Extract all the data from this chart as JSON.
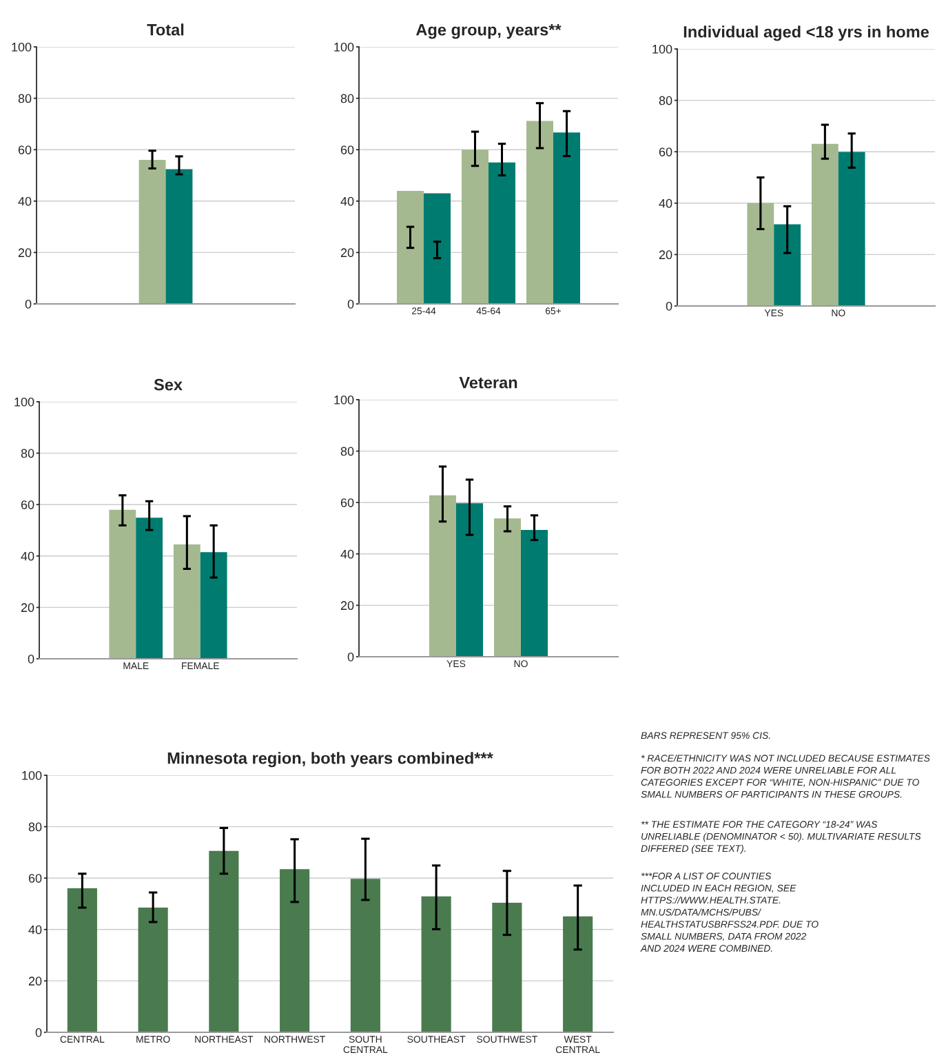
{
  "chart_data": [
    {
      "type": "bar",
      "title": "Total",
      "categories": [
        null
      ],
      "ylim": [
        0,
        100
      ],
      "yticks": [
        0,
        20,
        40,
        60,
        80,
        100
      ],
      "grid": "y",
      "series": [
        {
          "color": "#a5b990",
          "values": [
            56
          ],
          "errors": [
            [
              52.7,
              59.6
            ]
          ]
        },
        {
          "color": "#007b70",
          "values": [
            52.4
          ],
          "errors": [
            [
              50.4,
              57.4
            ]
          ]
        }
      ]
    },
    {
      "type": "bar",
      "title": "Age group, years**",
      "categories": [
        "25-44",
        "45-64",
        "65+"
      ],
      "ylim": [
        0,
        100
      ],
      "yticks": [
        0,
        20,
        40,
        60,
        80,
        100
      ],
      "grid": "y",
      "series": [
        {
          "color": "#a5b990",
          "values": [
            44,
            60,
            71.2
          ],
          "errors": [
            [
              21.8,
              30
            ],
            [
              53.7,
              67
            ],
            [
              60.6,
              78.1
            ]
          ]
        },
        {
          "color": "#007b70",
          "values": [
            43,
            55,
            66.7
          ],
          "errors": [
            [
              17.8,
              24.2
            ],
            [
              50,
              62.3
            ],
            [
              57.5,
              75
            ]
          ]
        }
      ]
    },
    {
      "type": "bar",
      "title": "Individual aged <18 yrs in home",
      "categories": [
        "YES",
        "NO"
      ],
      "ylim": [
        0,
        100
      ],
      "yticks": [
        0,
        20,
        40,
        60,
        80,
        100
      ],
      "grid": "y",
      "series": [
        {
          "color": "#a5b990",
          "values": [
            40,
            63.1
          ],
          "errors": [
            [
              29.9,
              50
            ],
            [
              57.3,
              70.5
            ]
          ]
        },
        {
          "color": "#007b70",
          "values": [
            31.8,
            59.9
          ],
          "errors": [
            [
              20.6,
              38.8
            ],
            [
              53.8,
              67.1
            ]
          ]
        }
      ]
    },
    {
      "type": "bar",
      "title": "Sex",
      "categories": [
        "MALE",
        "FEMALE"
      ],
      "ylim": [
        0,
        100
      ],
      "yticks": [
        0,
        20,
        40,
        60,
        80,
        100
      ],
      "grid": "y",
      "series": [
        {
          "color": "#a5b990",
          "values": [
            58,
            44.5
          ],
          "errors": [
            [
              51.9,
              63.6
            ],
            [
              35,
              55.5
            ]
          ]
        },
        {
          "color": "#007b70",
          "values": [
            54.9,
            41.5
          ],
          "errors": [
            [
              50.1,
              61.3
            ],
            [
              31.6,
              51.9
            ]
          ]
        }
      ]
    },
    {
      "type": "bar",
      "title": "Veteran",
      "categories": [
        "YES",
        "NO"
      ],
      "ylim": [
        0,
        100
      ],
      "yticks": [
        0,
        20,
        40,
        60,
        80,
        100
      ],
      "grid": "y",
      "series": [
        {
          "color": "#a5b990",
          "values": [
            62.8,
            53.8
          ],
          "errors": [
            [
              52.6,
              74
            ],
            [
              48.8,
              58.5
            ]
          ]
        },
        {
          "color": "#007b70",
          "values": [
            59.7,
            49.3
          ],
          "errors": [
            [
              47.4,
              68.9
            ],
            [
              45.4,
              55
            ]
          ]
        }
      ]
    },
    {
      "type": "bar",
      "title": "Minnesota region, both years combined***",
      "categories": [
        "CENTRAL",
        "METRO",
        "NORTHEAST",
        "NORTHWEST",
        "SOUTH\nCENTRAL",
        "SOUTHEAST",
        "SOUTHWEST",
        "WEST\nCENTRAL"
      ],
      "ylim": [
        0,
        100
      ],
      "yticks": [
        0,
        20,
        40,
        60,
        80,
        100
      ],
      "grid": "y",
      "series": [
        {
          "color": "#497b4f",
          "values": [
            56,
            48.5,
            70.6,
            63.5,
            59.7,
            52.9,
            50.4,
            45.1
          ],
          "errors": [
            [
              48.5,
              61.7
            ],
            [
              42.9,
              54.4
            ],
            [
              61.7,
              79.5
            ],
            [
              50.7,
              75.1
            ],
            [
              51.5,
              75.3
            ],
            [
              40.1,
              64.9
            ],
            [
              37.9,
              62.8
            ],
            [
              32.2,
              57.1
            ]
          ]
        }
      ]
    },
    {
      "type": "other",
      "annotations": [
        "BARS REPRESENT 95% CIS.",
        "* RACE/ETHNICITY WAS NOT INCLUDED BECAUSE ESTIMATES\nFOR BOTH 2022 AND 2024 WERE UNRELIABLE FOR ALL\nCATEGORIES EXCEPT FOR “WHITE, NON-HISPANIC” DUE TO\nSMALL NUMBERS OF PARTICIPANTS IN THESE GROUPS.",
        "** THE ESTIMATE FOR THE CATEGORY “18-24” WAS\nUNRELIABLE (DENOMINATOR < 50). MULTIVARIATE RESULTS\nDIFFERED (SEE TEXT).",
        "***FOR A LIST OF COUNTIES\nINCLUDED IN EACH REGION, SEE\nHTTPS://WWW.HEALTH.STATE.\nMN.US/DATA/MCHS/PUBS/\nHEALTHSTATUSBRFSS24.PDF. DUE TO\nSMALL NUMBERS, DATA FROM 2022\nAND 2024 WERE COMBINED."
      ]
    }
  ]
}
